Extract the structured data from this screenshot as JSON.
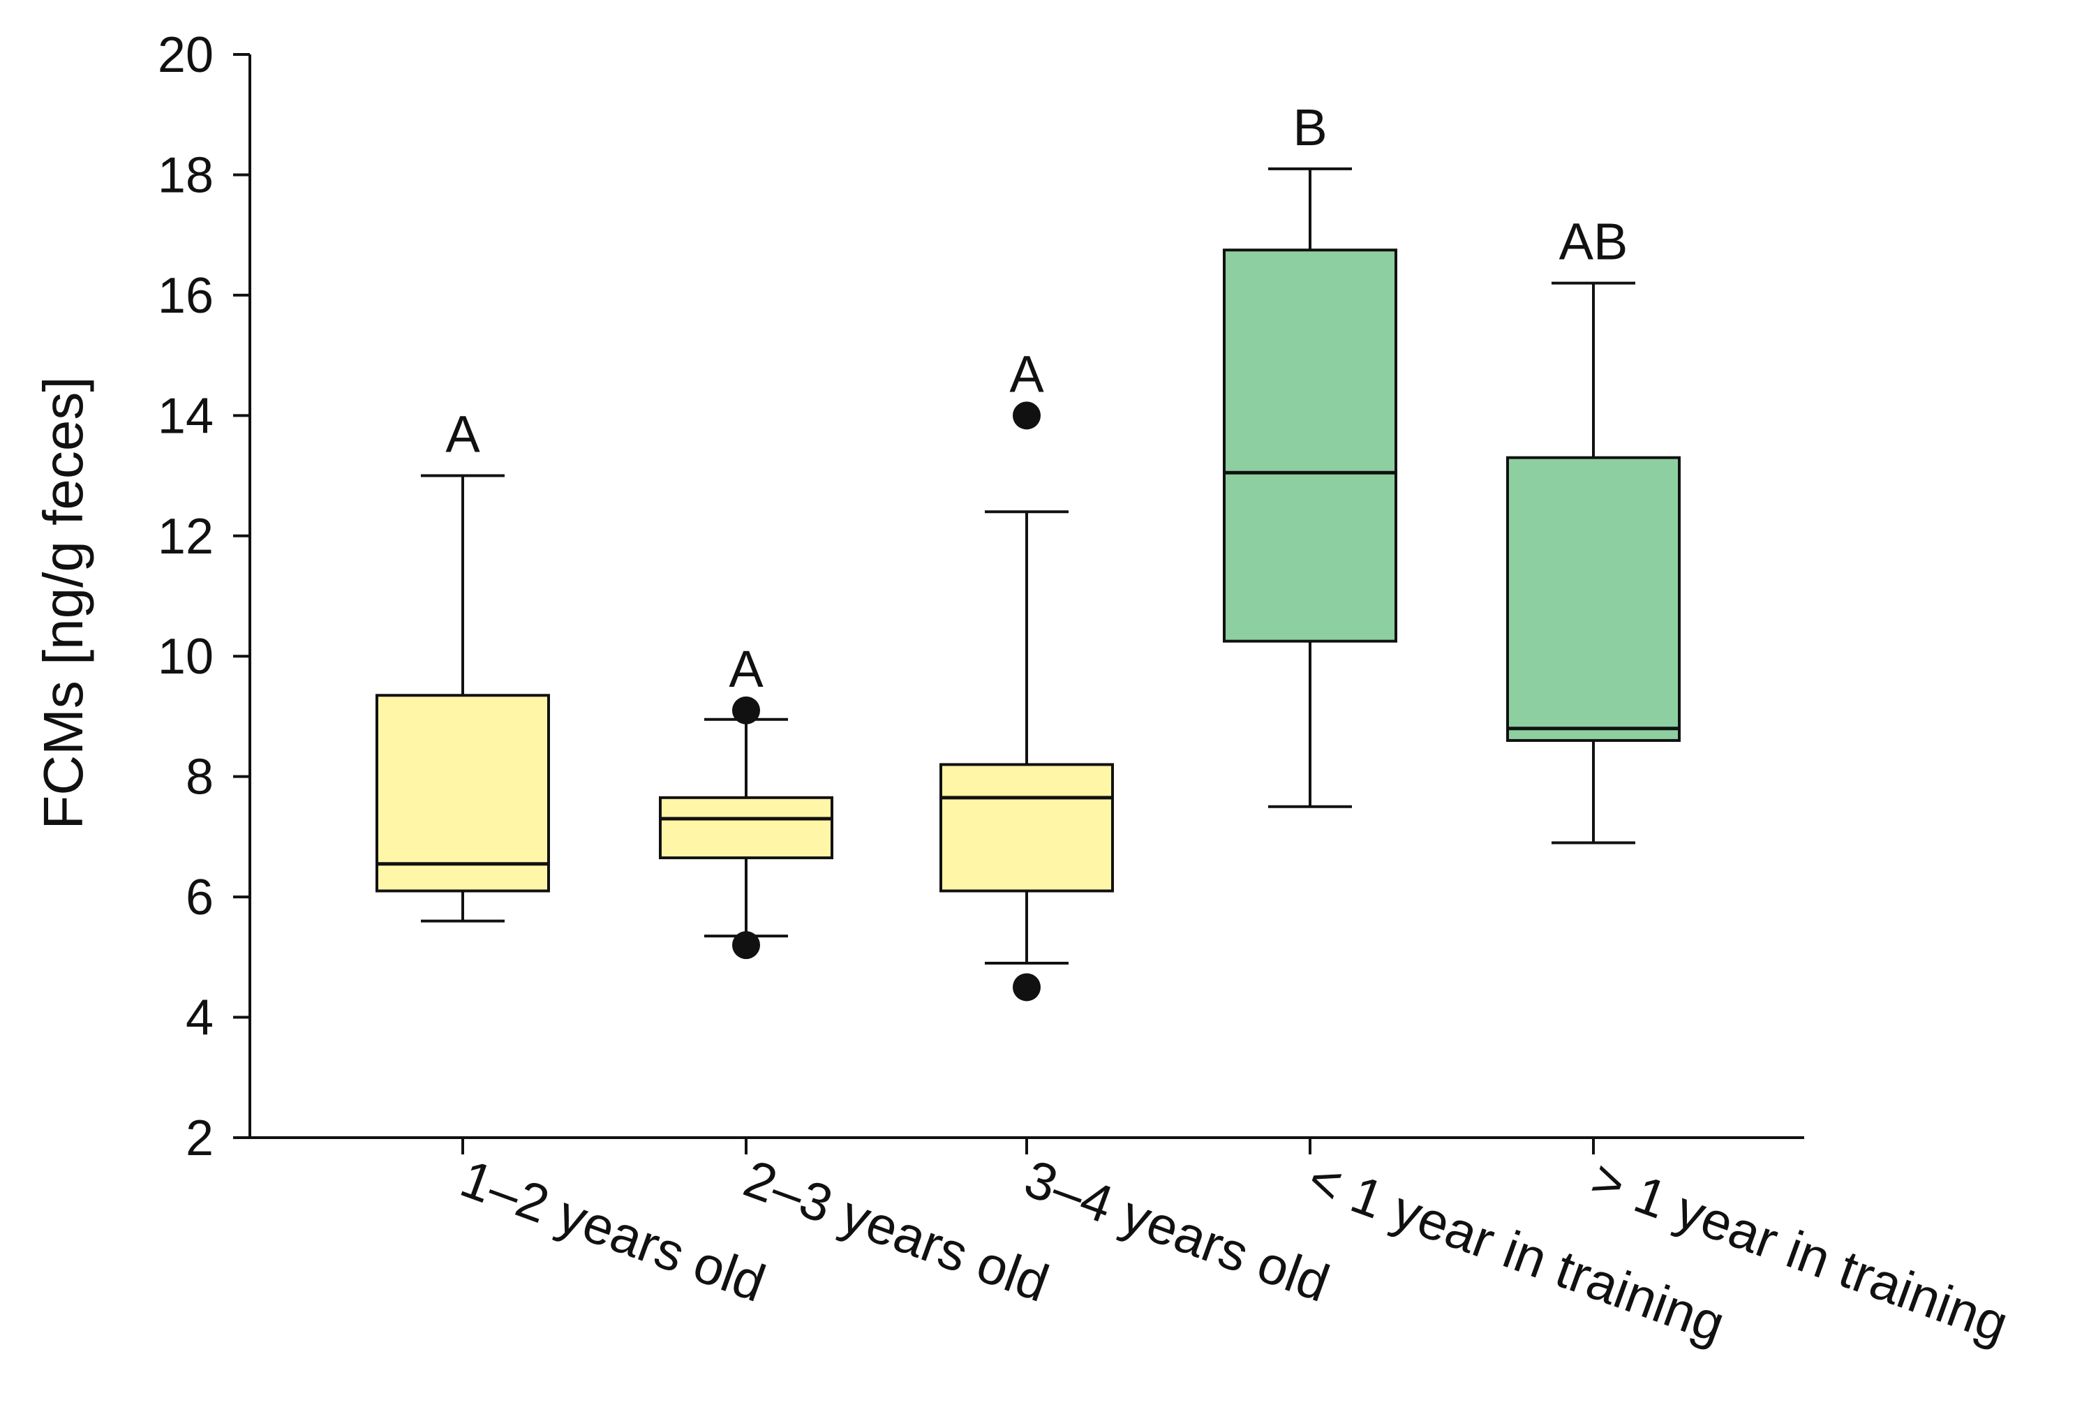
{
  "chart_data": {
    "type": "boxplot",
    "title": "",
    "xlabel": "",
    "ylabel": "FCMs [ng/g feces]",
    "ylim": [
      2,
      20
    ],
    "yticks": [
      2,
      4,
      6,
      8,
      10,
      12,
      14,
      16,
      18,
      20
    ],
    "ytick_labels": [
      "2",
      "4",
      "6",
      "8",
      "10",
      "12",
      "14",
      "16",
      "18",
      "20"
    ],
    "grid": false,
    "legend": "none",
    "colors": {
      "age_group": "#fff6a8",
      "training_group": "#8ecfa1",
      "line": "#111111"
    },
    "groups": [
      {
        "label": "1–2 years old",
        "color_key": "age_group",
        "whisker_low": 5.6,
        "q1": 6.1,
        "median": 6.55,
        "q3": 9.35,
        "whisker_high": 13.0,
        "outliers": [],
        "significance": "A"
      },
      {
        "label": "2–3 years old",
        "color_key": "age_group",
        "whisker_low": 5.35,
        "q1": 6.65,
        "median": 7.3,
        "q3": 7.65,
        "whisker_high": 8.95,
        "outliers": [
          5.2,
          9.1
        ],
        "significance": "A"
      },
      {
        "label": "3–4 years old",
        "color_key": "age_group",
        "whisker_low": 4.9,
        "q1": 6.1,
        "median": 7.65,
        "q3": 8.2,
        "whisker_high": 12.4,
        "outliers": [
          4.5,
          14.0
        ],
        "significance": "A"
      },
      {
        "label": "< 1 year in training",
        "color_key": "training_group",
        "whisker_low": 7.5,
        "q1": 10.25,
        "median": 13.05,
        "q3": 16.75,
        "whisker_high": 18.1,
        "outliers": [],
        "significance": "B"
      },
      {
        "label": "> 1 year in training",
        "color_key": "training_group",
        "whisker_low": 6.9,
        "q1": 8.6,
        "median": 8.8,
        "q3": 13.3,
        "whisker_high": 16.2,
        "outliers": [],
        "significance": "AB"
      }
    ]
  }
}
